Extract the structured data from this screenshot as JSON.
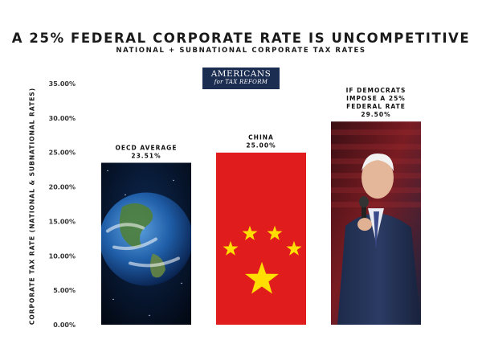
{
  "header": {
    "title": "A 25% FEDERAL CORPORATE RATE IS UNCOMPETITIVE",
    "subtitle": "NATIONAL + SUBNATIONAL CORPORATE TAX RATES",
    "logo_line1": "AMERICANS",
    "logo_line2": "for TAX REFORM"
  },
  "chart_data": {
    "type": "bar",
    "title": "A 25% FEDERAL CORPORATE RATE IS UNCOMPETITIVE",
    "subtitle": "NATIONAL + SUBNATIONAL CORPORATE TAX RATES",
    "xlabel": "",
    "ylabel": "CORPORATE TAX RATE (NATIONAL & SUBNATIONAL RATES)",
    "ylim": [
      0,
      35
    ],
    "y_ticks": [
      "0.00%",
      "5.00%",
      "10.00%",
      "15.00%",
      "20.00%",
      "25.00%",
      "30.00%",
      "35.00%"
    ],
    "y_tick_values": [
      0,
      5,
      10,
      15,
      20,
      25,
      30,
      35
    ],
    "grid": false,
    "categories": [
      "OECD AVERAGE",
      "CHINA",
      "IF DEMOCRATS IMPOSE A 25% FEDERAL RATE"
    ],
    "values": [
      23.51,
      25.0,
      29.5
    ],
    "bar_labels": [
      [
        "OECD AVERAGE",
        "23.51%"
      ],
      [
        "CHINA",
        "25.00%"
      ],
      [
        "IF DEMOCRATS",
        "IMPOSE A 25%",
        "FEDERAL RATE",
        "29.50%"
      ]
    ],
    "bar_fills": [
      "earth-image",
      "china-flag-image",
      "speaker-photo"
    ]
  }
}
